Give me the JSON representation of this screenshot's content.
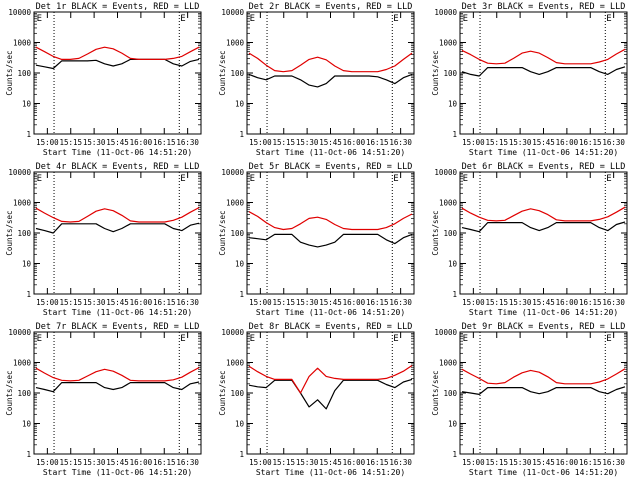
{
  "chart_data": [
    {
      "type": "line",
      "title": "Det 1r BLACK = Events, RED = LLD",
      "xlabel": "Start Time (11-Oct-06 14:51:20)",
      "ylabel": "Counts/sec",
      "xticks": [
        "15:00",
        "15:15",
        "15:30",
        "15:45",
        "16:00",
        "16:15",
        "16:30"
      ],
      "yticks": [
        "1",
        "10",
        "100",
        "1000",
        "10000"
      ],
      "ylim": [
        1,
        10000
      ],
      "yscale": "log",
      "markers": [
        "E",
        "E"
      ],
      "series": [
        {
          "color": "#000000",
          "values": [
            180,
            160,
            140,
            250,
            250,
            250,
            250,
            260,
            200,
            170,
            200,
            280,
            280,
            280,
            280,
            280,
            200,
            170,
            240,
            280
          ]
        },
        {
          "color": "#e00000",
          "values": [
            700,
            500,
            350,
            280,
            280,
            300,
            420,
            600,
            700,
            620,
            450,
            300,
            280,
            280,
            280,
            280,
            300,
            350,
            500,
            700
          ]
        }
      ]
    },
    {
      "type": "line",
      "title": "Det 2r BLACK = Events, RED = LLD",
      "xlabel": "Start Time (11-Oct-06 14:51:20)",
      "ylabel": "Counts/sec",
      "xticks": [
        "15:00",
        "15:15",
        "15:30",
        "15:45",
        "16:00",
        "16:15",
        "16:30"
      ],
      "yticks": [
        "1",
        "10",
        "100",
        "1000",
        "10000"
      ],
      "ylim": [
        1,
        10000
      ],
      "yscale": "log",
      "markers": [
        "E",
        "E"
      ],
      "series": [
        {
          "color": "#000000",
          "values": [
            90,
            70,
            60,
            80,
            80,
            80,
            60,
            40,
            35,
            45,
            80,
            80,
            80,
            80,
            80,
            75,
            60,
            45,
            70,
            90
          ]
        },
        {
          "color": "#e00000",
          "values": [
            450,
            300,
            180,
            120,
            110,
            120,
            180,
            280,
            330,
            270,
            170,
            120,
            110,
            110,
            110,
            110,
            130,
            170,
            280,
            450
          ]
        }
      ]
    },
    {
      "type": "line",
      "title": "Det 3r BLACK = Events, RED = LLD",
      "xlabel": "Start Time (11-Oct-06 14:51:20)",
      "ylabel": "Counts/sec",
      "xticks": [
        "15:00",
        "15:15",
        "15:30",
        "15:45",
        "16:00",
        "16:15",
        "16:30"
      ],
      "yticks": [
        "1",
        "10",
        "100",
        "1000",
        "10000"
      ],
      "ylim": [
        1,
        10000
      ],
      "yscale": "log",
      "markers": [
        "E",
        "E"
      ],
      "series": [
        {
          "color": "#000000",
          "values": [
            110,
            90,
            80,
            150,
            150,
            150,
            150,
            150,
            110,
            90,
            110,
            150,
            150,
            150,
            150,
            150,
            110,
            90,
            130,
            160
          ]
        },
        {
          "color": "#e00000",
          "values": [
            550,
            400,
            280,
            210,
            200,
            210,
            300,
            450,
            520,
            450,
            320,
            220,
            200,
            200,
            200,
            200,
            230,
            280,
            420,
            600
          ]
        }
      ]
    },
    {
      "type": "line",
      "title": "Det 4r BLACK = Events, RED = LLD",
      "xlabel": "Start Time (11-Oct-06 14:51:20)",
      "ylabel": "Counts/sec",
      "xticks": [
        "15:00",
        "15:15",
        "15:30",
        "15:45",
        "16:00",
        "16:15",
        "16:30"
      ],
      "yticks": [
        "1",
        "10",
        "100",
        "1000",
        "10000"
      ],
      "ylim": [
        1,
        10000
      ],
      "yscale": "log",
      "markers": [
        "E",
        "E"
      ],
      "series": [
        {
          "color": "#000000",
          "values": [
            140,
            120,
            100,
            200,
            200,
            200,
            200,
            200,
            140,
            110,
            140,
            200,
            200,
            200,
            200,
            200,
            140,
            120,
            180,
            210
          ]
        },
        {
          "color": "#e00000",
          "values": [
            650,
            450,
            320,
            240,
            230,
            240,
            350,
            520,
            620,
            540,
            380,
            250,
            230,
            230,
            230,
            230,
            260,
            330,
            480,
            680
          ]
        }
      ]
    },
    {
      "type": "line",
      "title": "Det 5r BLACK = Events, RED = LLD",
      "xlabel": "Start Time (11-Oct-06 14:51:20)",
      "ylabel": "Counts/sec",
      "xticks": [
        "15:00",
        "15:15",
        "15:30",
        "15:45",
        "16:00",
        "16:15",
        "16:30"
      ],
      "yticks": [
        "1",
        "10",
        "100",
        "1000",
        "10000"
      ],
      "ylim": [
        1,
        10000
      ],
      "yscale": "log",
      "markers": [
        "E",
        "E"
      ],
      "series": [
        {
          "color": "#000000",
          "values": [
            70,
            65,
            60,
            90,
            90,
            90,
            50,
            40,
            35,
            40,
            50,
            90,
            90,
            90,
            90,
            90,
            60,
            45,
            70,
            90
          ]
        },
        {
          "color": "#e00000",
          "values": [
            500,
            350,
            220,
            150,
            130,
            140,
            200,
            300,
            330,
            280,
            190,
            140,
            130,
            130,
            130,
            130,
            150,
            200,
            300,
            420
          ]
        }
      ]
    },
    {
      "type": "line",
      "title": "Det 6r BLACK = Events, RED = LLD",
      "xlabel": "Start Time (11-Oct-06 14:51:20)",
      "ylabel": "Counts/sec",
      "xticks": [
        "15:00",
        "15:15",
        "15:30",
        "15:45",
        "16:00",
        "16:15",
        "16:30"
      ],
      "yticks": [
        "1",
        "10",
        "100",
        "1000",
        "10000"
      ],
      "ylim": [
        1,
        10000
      ],
      "yscale": "log",
      "markers": [
        "E",
        "E"
      ],
      "series": [
        {
          "color": "#000000",
          "values": [
            150,
            130,
            110,
            220,
            220,
            220,
            220,
            220,
            150,
            120,
            150,
            220,
            220,
            220,
            220,
            220,
            150,
            120,
            190,
            230
          ]
        },
        {
          "color": "#e00000",
          "values": [
            650,
            450,
            330,
            260,
            250,
            260,
            370,
            520,
            620,
            540,
            400,
            270,
            250,
            250,
            250,
            250,
            280,
            340,
            480,
            700
          ]
        }
      ]
    },
    {
      "type": "line",
      "title": "Det 7r BLACK = Events, RED = LLD",
      "xlabel": "Start Time (11-Oct-06 14:51:20)",
      "ylabel": "Counts/sec",
      "xticks": [
        "15:00",
        "15:15",
        "15:30",
        "15:45",
        "16:00",
        "16:15",
        "16:30"
      ],
      "yticks": [
        "1",
        "10",
        "100",
        "1000",
        "10000"
      ],
      "ylim": [
        1,
        10000
      ],
      "yscale": "log",
      "markers": [
        "E",
        "E"
      ],
      "series": [
        {
          "color": "#000000",
          "values": [
            150,
            130,
            110,
            220,
            220,
            220,
            220,
            220,
            150,
            130,
            150,
            220,
            220,
            220,
            220,
            220,
            150,
            130,
            200,
            230
          ]
        },
        {
          "color": "#e00000",
          "values": [
            650,
            450,
            320,
            260,
            250,
            260,
            360,
            500,
            600,
            520,
            380,
            260,
            250,
            250,
            250,
            250,
            270,
            330,
            480,
            680
          ]
        }
      ]
    },
    {
      "type": "line",
      "title": "Det 8r BLACK = Events, RED = LLD",
      "xlabel": "Start Time (11-Oct-06 14:51:20)",
      "ylabel": "Counts/sec",
      "xticks": [
        "15:00",
        "15:15",
        "15:30",
        "15:45",
        "16:00",
        "16:15",
        "16:30"
      ],
      "yticks": [
        "1",
        "10",
        "100",
        "1000",
        "10000"
      ],
      "ylim": [
        1,
        10000
      ],
      "yscale": "log",
      "markers": [
        "E",
        "E"
      ],
      "series": [
        {
          "color": "#000000",
          "values": [
            180,
            160,
            150,
            260,
            260,
            260,
            100,
            35,
            60,
            30,
            120,
            260,
            260,
            260,
            260,
            260,
            190,
            150,
            230,
            280
          ]
        },
        {
          "color": "#e00000",
          "values": [
            750,
            500,
            350,
            280,
            280,
            280,
            100,
            350,
            650,
            350,
            300,
            280,
            280,
            280,
            280,
            280,
            300,
            380,
            520,
            800
          ]
        }
      ]
    },
    {
      "type": "line",
      "title": "Det 9r BLACK = Events, RED = LLD",
      "xlabel": "Start Time (11-Oct-06 14:51:20)",
      "ylabel": "Counts/sec",
      "xticks": [
        "15:00",
        "15:15",
        "15:30",
        "15:45",
        "16:00",
        "16:15",
        "16:30"
      ],
      "yticks": [
        "1",
        "10",
        "100",
        "1000",
        "10000"
      ],
      "ylim": [
        1,
        10000
      ],
      "yscale": "log",
      "markers": [
        "E",
        "E"
      ],
      "series": [
        {
          "color": "#000000",
          "values": [
            110,
            100,
            90,
            150,
            150,
            150,
            150,
            150,
            110,
            95,
            110,
            150,
            150,
            150,
            150,
            150,
            110,
            95,
            130,
            160
          ]
        },
        {
          "color": "#e00000",
          "values": [
            600,
            420,
            300,
            210,
            200,
            220,
            330,
            460,
            550,
            480,
            340,
            220,
            200,
            200,
            200,
            200,
            230,
            290,
            420,
            620
          ]
        }
      ]
    }
  ]
}
